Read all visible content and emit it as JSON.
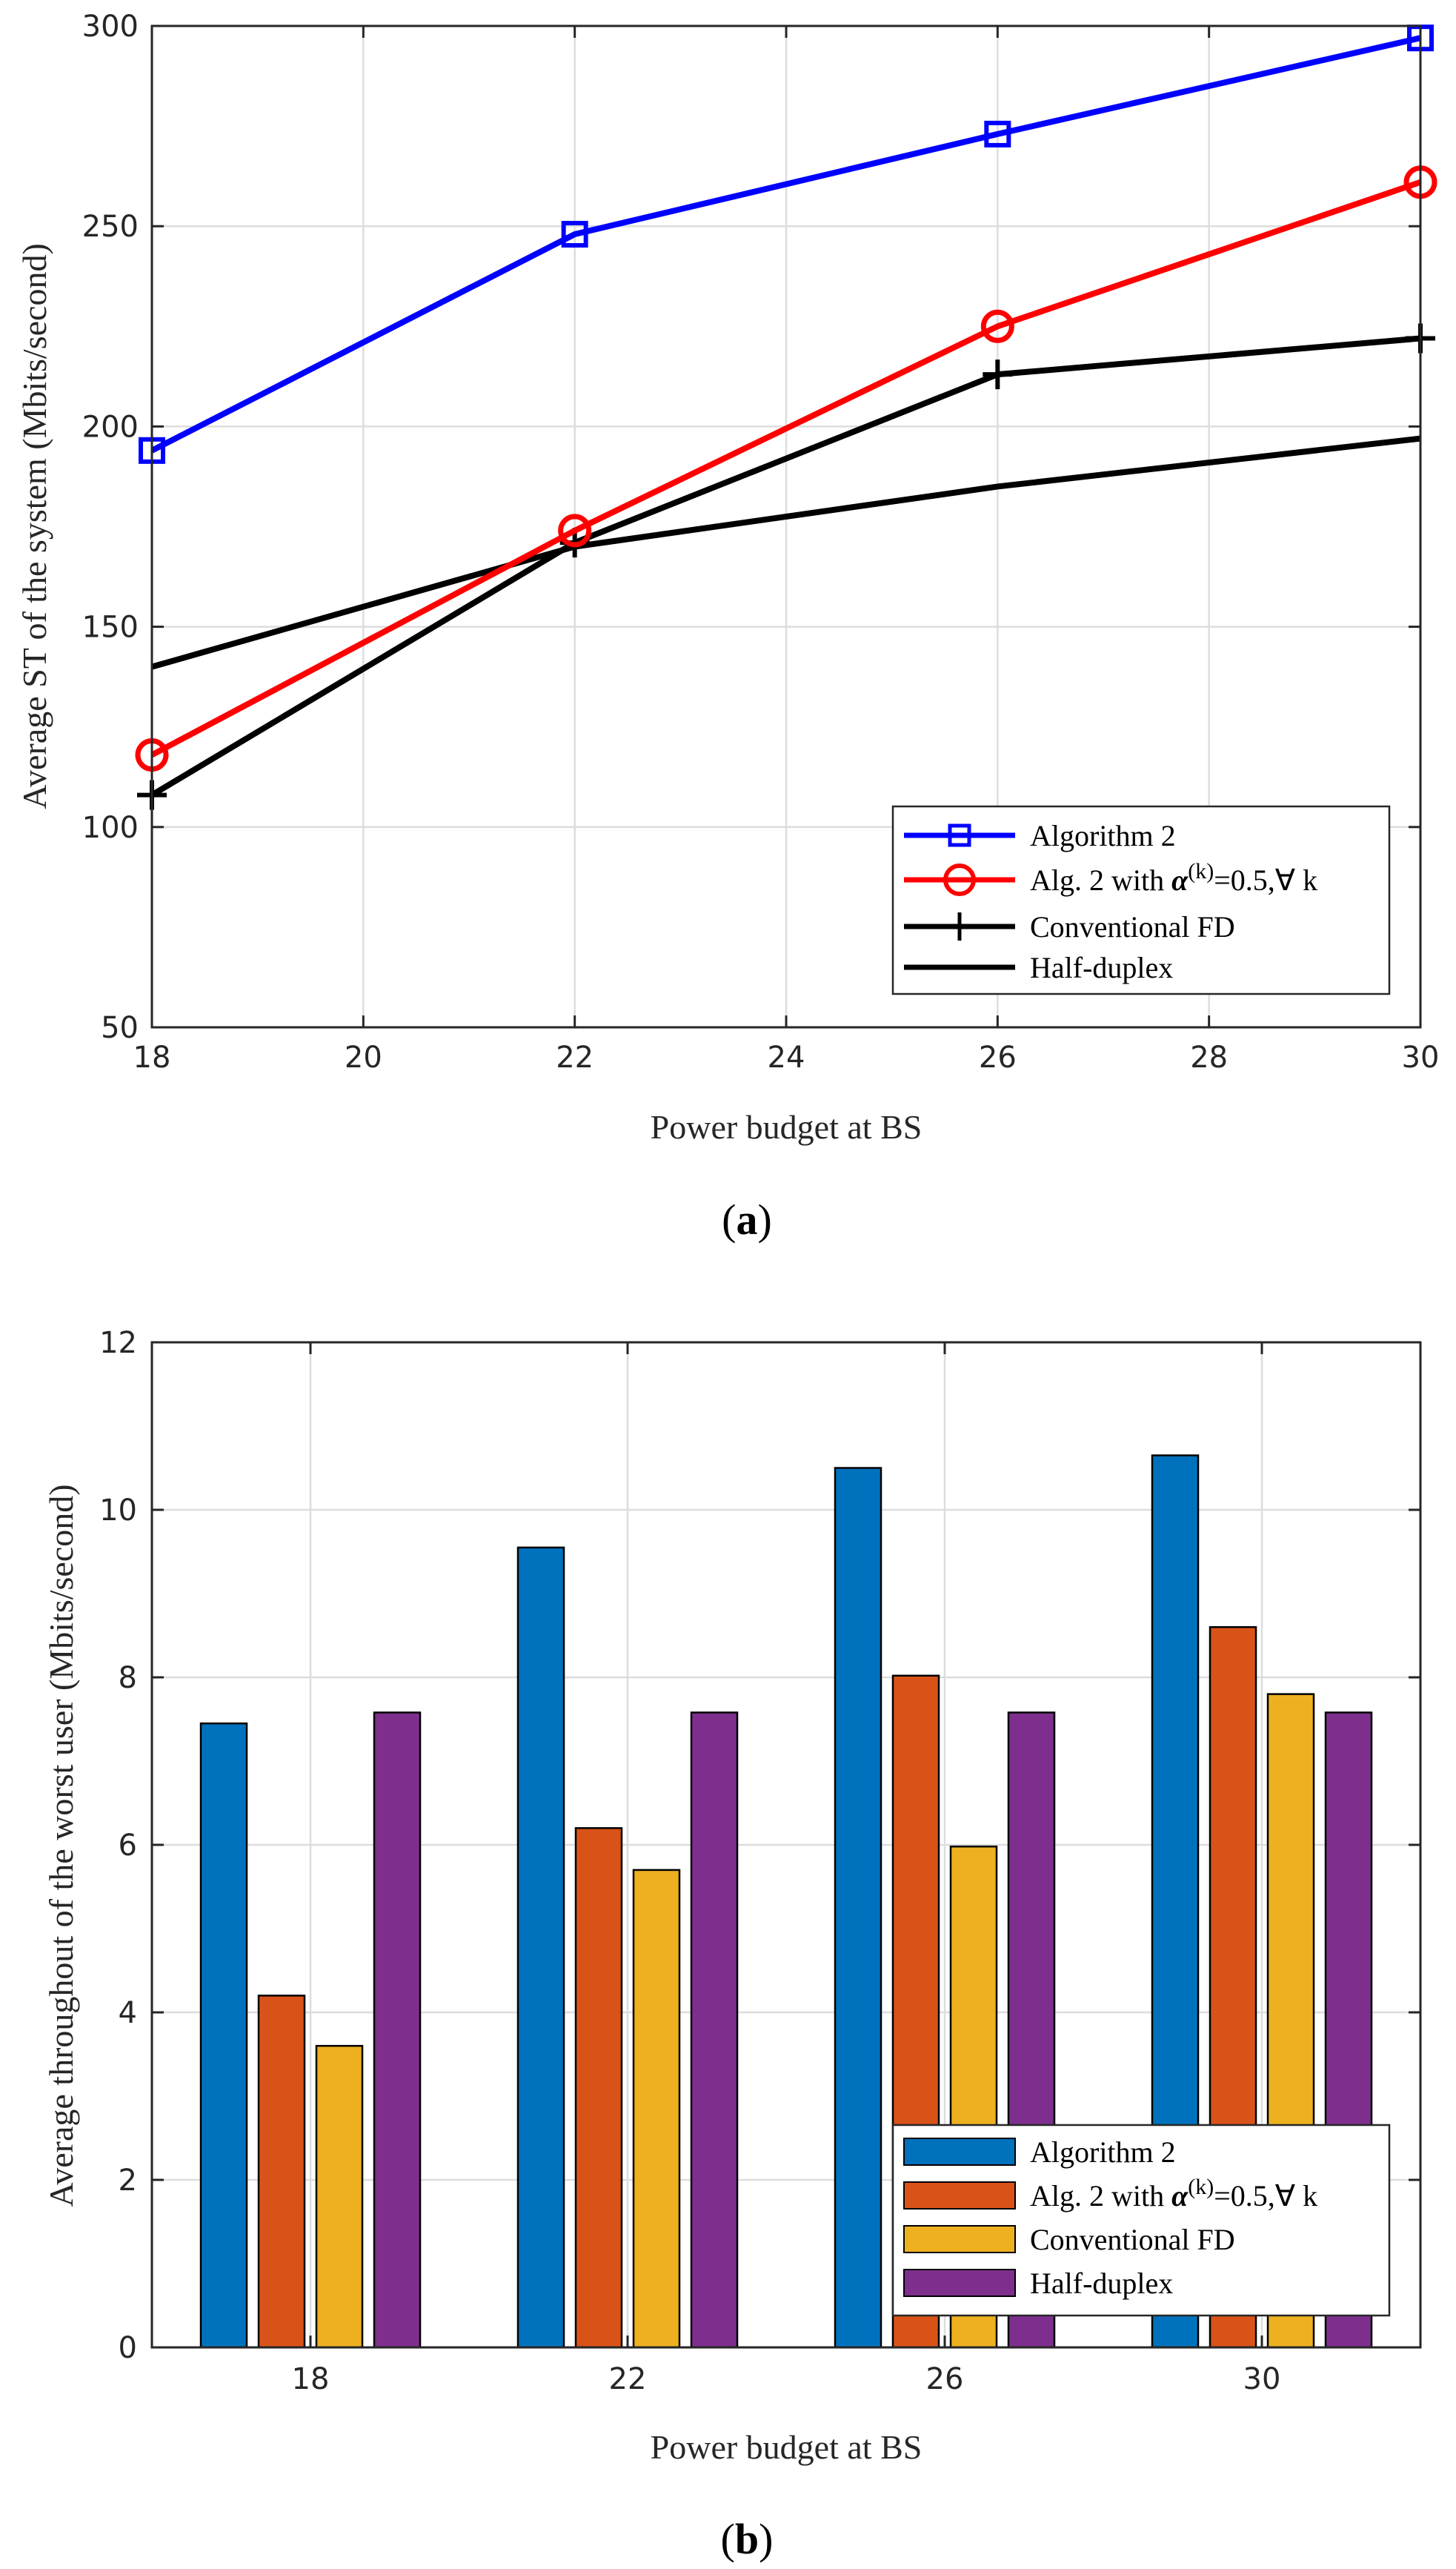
{
  "colors": {
    "blue_line": "#0000ff",
    "red_line": "#ff0000",
    "black_line": "#000000",
    "bar_blue": "#0072bd",
    "bar_orange": "#d95319",
    "bar_yellow": "#edb120",
    "bar_purple": "#7e2f8e",
    "grid": "#dddddd"
  },
  "chart_data": [
    {
      "type": "line",
      "caption_letter": "a",
      "xlabel": "Power budget at BS",
      "ylabel": "Average ST of the system (Mbits/second)",
      "xlim": [
        18,
        30
      ],
      "ylim": [
        50,
        300
      ],
      "x_ticks": [
        "18",
        "20",
        "22",
        "24",
        "26",
        "28",
        "30"
      ],
      "y_ticks": [
        "50",
        "100",
        "150",
        "200",
        "250",
        "300"
      ],
      "grid": true,
      "legend_position": "bottom-right",
      "x": [
        18,
        22,
        26,
        30
      ],
      "series": [
        {
          "name": "Algorithm 2",
          "legend_prefix": "",
          "legend_suffix": "",
          "color": "#0000ff",
          "marker": "square",
          "values": [
            194,
            248,
            273,
            297
          ]
        },
        {
          "name": "Alg. 2 with α(k)=0.5,∀ k",
          "legend_prefix": "Alg. 2 with ",
          "legend_suffix": "=0.5,∀ k",
          "color": "#ff0000",
          "marker": "circle",
          "values": [
            118,
            174,
            225,
            261
          ]
        },
        {
          "name": "Conventional FD",
          "legend_prefix": "",
          "legend_suffix": "",
          "color": "#000000",
          "marker": "plus",
          "values": [
            108,
            171,
            213,
            222
          ]
        },
        {
          "name": "Half-duplex",
          "legend_prefix": "",
          "legend_suffix": "",
          "color": "#000000",
          "marker": "none",
          "values": [
            140,
            170,
            185,
            197
          ]
        }
      ]
    },
    {
      "type": "bar",
      "caption_letter": "b",
      "xlabel": "Power budget at BS",
      "ylabel": "Average throughout of the worst user (Mbits/second)",
      "ylim": [
        0,
        12
      ],
      "categories": [
        "18",
        "22",
        "26",
        "30"
      ],
      "y_ticks": [
        "0",
        "2",
        "4",
        "6",
        "8",
        "10",
        "12"
      ],
      "grid": true,
      "legend_position": "bottom-right",
      "series": [
        {
          "name": "Algorithm 2",
          "legend_prefix": "",
          "legend_suffix": "",
          "color": "#0072bd",
          "values": [
            7.45,
            9.55,
            10.5,
            10.65
          ]
        },
        {
          "name": "Alg. 2 with α(k)=0.5,∀ k",
          "legend_prefix": "Alg. 2 with ",
          "legend_suffix": "=0.5,∀ k",
          "color": "#d95319",
          "values": [
            4.2,
            6.2,
            8.02,
            8.6
          ]
        },
        {
          "name": "Conventional FD",
          "legend_prefix": "",
          "legend_suffix": "",
          "color": "#edb120",
          "values": [
            3.6,
            5.7,
            5.98,
            7.8
          ]
        },
        {
          "name": "Half-duplex",
          "legend_prefix": "",
          "legend_suffix": "",
          "color": "#7e2f8e",
          "values": [
            7.58,
            7.58,
            7.58,
            7.58
          ]
        }
      ]
    }
  ],
  "legend_alpha": {
    "symbol": "α",
    "superscript": "(k)"
  }
}
